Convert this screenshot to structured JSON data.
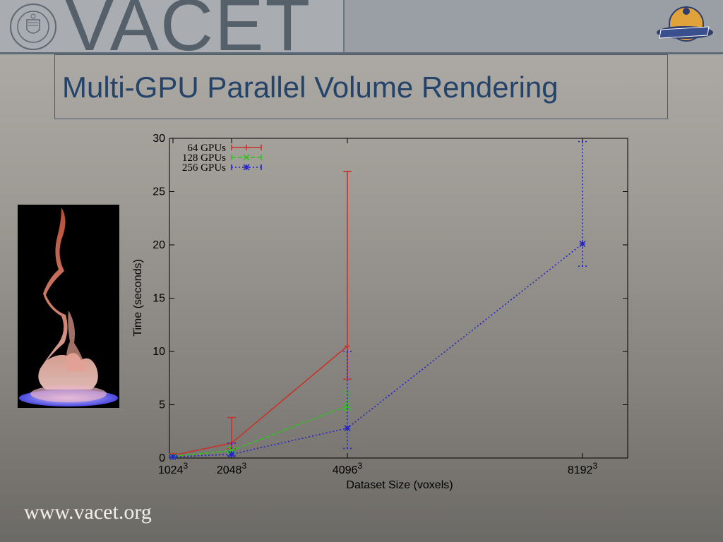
{
  "header": {
    "brand": "VACET",
    "seal_text": "DEPARTMENT OF ENERGY · UNITED STATES OF AMERICA",
    "partner_logo": "ASCR"
  },
  "slide": {
    "title": "Multi-GPU Parallel Volume Rendering",
    "footer_url": "www.vacet.org",
    "image": "flame-volume-rendering"
  },
  "colors": {
    "title": "#24436a",
    "series_64": "#c8322c",
    "series_128": "#2ec21d",
    "series_256": "#2424c8"
  },
  "chart_data": {
    "type": "line",
    "xlabel": "Dataset Size (voxels)",
    "ylabel": "Time (seconds)",
    "ylim": [
      0,
      30
    ],
    "yticks": [
      0,
      5,
      10,
      15,
      20,
      25,
      30
    ],
    "x_categories": [
      {
        "base": "1024",
        "exp": "3"
      },
      {
        "base": "2048",
        "exp": "3"
      },
      {
        "base": "4096",
        "exp": "3"
      },
      {
        "base": "8192",
        "exp": "3"
      }
    ],
    "legend_position": "top-left",
    "series": [
      {
        "name": "64 GPUs",
        "style": "solid",
        "marker": "+",
        "color": "#c8322c",
        "points": [
          {
            "x": "1024",
            "y": 0.25,
            "lo": 0.15,
            "hi": 0.4
          },
          {
            "x": "2048",
            "y": 1.4,
            "lo": 0.9,
            "hi": 3.8
          },
          {
            "x": "4096",
            "y": 10.5,
            "lo": 7.4,
            "hi": 26.9
          }
        ]
      },
      {
        "name": "128 GPUs",
        "style": "dashed",
        "marker": "x",
        "color": "#2ec21d",
        "points": [
          {
            "x": "1024",
            "y": 0.15,
            "lo": 0.1,
            "hi": 0.25
          },
          {
            "x": "2048",
            "y": 0.7,
            "lo": 0.5,
            "hi": 1.0
          },
          {
            "x": "4096",
            "y": 4.9,
            "lo": 4.5,
            "hi": 6.2
          }
        ]
      },
      {
        "name": "256 GPUs",
        "style": "dotted",
        "marker": "*",
        "color": "#2424c8",
        "points": [
          {
            "x": "1024",
            "y": 0.1,
            "lo": 0.05,
            "hi": 0.2
          },
          {
            "x": "2048",
            "y": 0.35,
            "lo": 0.2,
            "hi": 1.4
          },
          {
            "x": "4096",
            "y": 2.8,
            "lo": 0.9,
            "hi": 10.0
          },
          {
            "x": "8192",
            "y": 20.1,
            "lo": 18.0,
            "hi": 29.7
          }
        ]
      }
    ]
  }
}
